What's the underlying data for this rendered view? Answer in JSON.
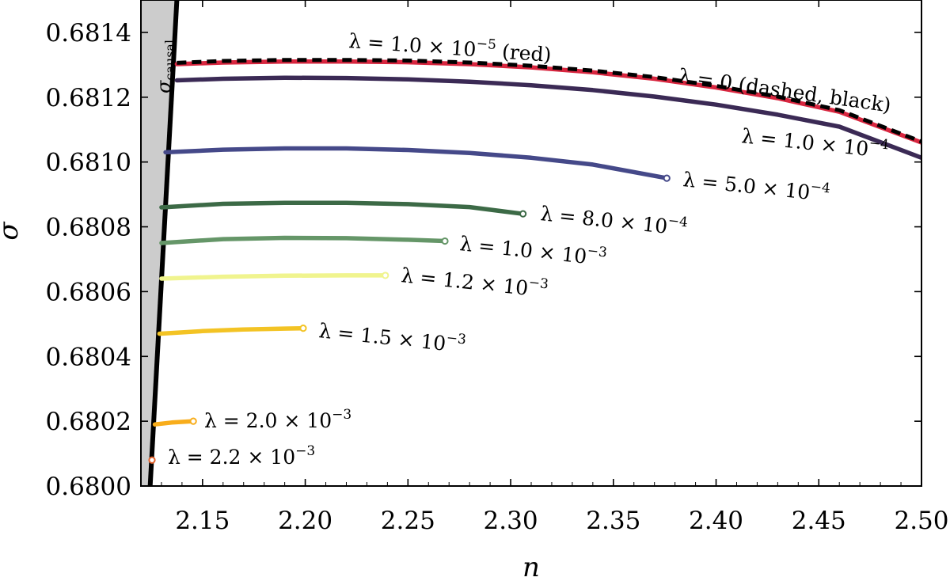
{
  "chart_data": {
    "type": "line",
    "xlabel": "n",
    "ylabel": "σ",
    "xlim": [
      2.12,
      2.5
    ],
    "ylim": [
      0.68,
      0.6815
    ],
    "x_ticks": [
      2.15,
      2.2,
      2.25,
      2.3,
      2.35,
      2.4,
      2.45,
      2.5
    ],
    "x_tick_labels": [
      "2.15",
      "2.20",
      "2.25",
      "2.30",
      "2.35",
      "2.40",
      "2.45",
      "2.50"
    ],
    "y_ticks": [
      0.68,
      0.6802,
      0.6804,
      0.6806,
      0.6808,
      0.681,
      0.6812,
      0.6814
    ],
    "y_tick_labels": [
      "0.6800",
      "0.6802",
      "0.6804",
      "0.6806",
      "0.6808",
      "0.6810",
      "0.6812",
      "0.6814"
    ],
    "grid": false,
    "causal_boundary": {
      "label": "σ",
      "label_sub": "causal",
      "x": [
        2.1245,
        2.1375
      ],
      "y": [
        0.68,
        0.6815
      ],
      "fill": "#cccccc",
      "color": "#000000"
    },
    "series": [
      {
        "name": "λ = 2.2 × 10",
        "exponent": "−3",
        "suffix": "",
        "color": "#e2602a",
        "style": "solid",
        "x": [
          2.1254
        ],
        "y": [
          0.68008
        ],
        "end_marker": true
      },
      {
        "name": "λ = 2.0 × 10",
        "exponent": "−3",
        "suffix": "",
        "color": "#f8ad1b",
        "style": "solid",
        "x": [
          2.1268,
          2.135,
          2.1455
        ],
        "y": [
          0.68019,
          0.680196,
          0.6802
        ],
        "end_marker": true
      },
      {
        "name": "λ = 1.5 × 10",
        "exponent": "−3",
        "suffix": "",
        "color": "#f3c324",
        "style": "solid",
        "x": [
          2.129,
          2.15,
          2.17,
          2.19,
          2.199
        ],
        "y": [
          0.68047,
          0.680478,
          0.680483,
          0.680486,
          0.680487
        ],
        "end_marker": true
      },
      {
        "name": "λ = 1.2 × 10",
        "exponent": "−3",
        "suffix": "",
        "color": "#f0f48e",
        "style": "solid",
        "x": [
          2.13,
          2.16,
          2.19,
          2.22,
          2.239
        ],
        "y": [
          0.68064,
          0.680646,
          0.680649,
          0.68065,
          0.68065
        ],
        "end_marker": true
      },
      {
        "name": "λ = 1.0 × 10",
        "exponent": "−3",
        "suffix": "",
        "color": "#659668",
        "style": "solid",
        "x": [
          2.13,
          2.16,
          2.19,
          2.22,
          2.25,
          2.268
        ],
        "y": [
          0.68075,
          0.680762,
          0.680766,
          0.680765,
          0.68076,
          0.680756
        ],
        "end_marker": true
      },
      {
        "name": "λ = 8.0 × 10",
        "exponent": "−4",
        "suffix": "",
        "color": "#3c6a46",
        "style": "solid",
        "x": [
          2.13,
          2.16,
          2.19,
          2.22,
          2.25,
          2.28,
          2.306
        ],
        "y": [
          0.68086,
          0.680871,
          0.680874,
          0.680874,
          0.68087,
          0.680861,
          0.68084
        ],
        "end_marker": true
      },
      {
        "name": "λ = 5.0 × 10",
        "exponent": "−4",
        "suffix": "",
        "color": "#454989",
        "style": "solid",
        "x": [
          2.132,
          2.16,
          2.19,
          2.22,
          2.25,
          2.28,
          2.31,
          2.34,
          2.376
        ],
        "y": [
          0.68103,
          0.681038,
          0.681042,
          0.681042,
          0.681037,
          0.681028,
          0.681013,
          0.680992,
          0.68095
        ],
        "end_marker": true
      },
      {
        "name": "λ = 1.0 × 10",
        "exponent": "−4",
        "suffix": "",
        "color": "#3b2a55",
        "style": "solid",
        "x": [
          2.1375,
          2.16,
          2.19,
          2.22,
          2.25,
          2.28,
          2.31,
          2.34,
          2.37,
          2.4,
          2.43,
          2.46,
          2.5
        ],
        "y": [
          0.681252,
          0.681257,
          0.68126,
          0.681259,
          0.681255,
          0.681248,
          0.681237,
          0.681222,
          0.681202,
          0.681177,
          0.681146,
          0.681109,
          0.681013
        ],
        "end_marker": false
      },
      {
        "name": "λ = 1.0 × 10",
        "exponent": "−5",
        "suffix": " (red)",
        "color": "#d8263f",
        "style": "solid",
        "x": [
          2.1375,
          2.16,
          2.19,
          2.22,
          2.25,
          2.28,
          2.31,
          2.34,
          2.37,
          2.4,
          2.43,
          2.46,
          2.5
        ],
        "y": [
          0.681302,
          0.681307,
          0.68131,
          0.68131,
          0.681308,
          0.681302,
          0.681292,
          0.681277,
          0.681257,
          0.68123,
          0.681197,
          0.681155,
          0.68106
        ],
        "end_marker": false
      },
      {
        "name": "λ = 0 (dashed, black)",
        "exponent": "",
        "suffix": "",
        "color": "#000000",
        "style": "dashed",
        "x": [
          2.1375,
          2.16,
          2.19,
          2.22,
          2.25,
          2.28,
          2.31,
          2.34,
          2.37,
          2.4,
          2.43,
          2.46,
          2.5
        ],
        "y": [
          0.681306,
          0.681312,
          0.681315,
          0.681315,
          0.681313,
          0.681307,
          0.681297,
          0.681282,
          0.681262,
          0.681235,
          0.681202,
          0.68116,
          0.681063
        ],
        "end_marker": false
      }
    ]
  }
}
